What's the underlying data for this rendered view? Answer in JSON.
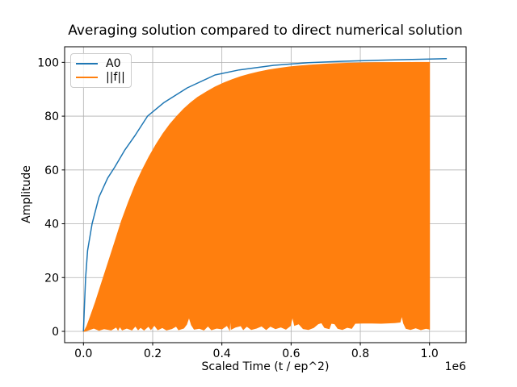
{
  "figure": {
    "title": "Averaging solution compared to direct numerical solution",
    "xlabel": "Scaled Time (t / ep^2)",
    "ylabel": "Amplitude",
    "offset_text": "1e6",
    "background": "#ffffff"
  },
  "legend": {
    "position": "upper-left",
    "entries": [
      {
        "label": "A0",
        "color": "#1f77b4"
      },
      {
        "label": "||f||",
        "color": "#ff7f0e"
      }
    ]
  },
  "chart_data": {
    "type": "line",
    "title": "Averaging solution compared to direct numerical solution",
    "xlabel": "Scaled Time (t / ep^2)",
    "ylabel": "Amplitude",
    "x_offset_label": "1e6",
    "grid": true,
    "colors": {
      "grid": "#b0b0b0",
      "spine": "#000000",
      "text": "#000000"
    },
    "xlim": [
      -54400,
      1105700
    ],
    "ylim": [
      -4.2,
      105.8
    ],
    "x_ticks": [
      0,
      200000,
      400000,
      600000,
      800000,
      1000000
    ],
    "x_tick_labels": [
      "0.0",
      "0.2",
      "0.4",
      "0.6",
      "0.8",
      "1.0"
    ],
    "y_ticks": [
      0,
      20,
      40,
      60,
      80,
      100
    ],
    "y_tick_labels": [
      "0",
      "20",
      "40",
      "60",
      "80",
      "100"
    ],
    "series": [
      {
        "name": "A0",
        "type": "line",
        "color": "#1f77b4",
        "linewidth": 1.5,
        "points": [
          [
            0,
            0
          ],
          [
            3000,
            10
          ],
          [
            6300,
            20
          ],
          [
            12000,
            30
          ],
          [
            25000,
            40
          ],
          [
            45000,
            50
          ],
          [
            70000,
            57
          ],
          [
            90000,
            61
          ],
          [
            120000,
            67.5
          ],
          [
            150000,
            73
          ],
          [
            185000,
            80
          ],
          [
            232000,
            85
          ],
          [
            300000,
            90.5
          ],
          [
            380000,
            95.3
          ],
          [
            450000,
            97.2
          ],
          [
            550000,
            98.9
          ],
          [
            650000,
            99.9
          ],
          [
            750000,
            100.4
          ],
          [
            850000,
            100.8
          ],
          [
            950000,
            101.1
          ],
          [
            1050000,
            101.35
          ]
        ]
      },
      {
        "name": "||f||",
        "type": "dense_oscillation_fill",
        "color": "#ff7f0e",
        "note": "rapidly oscillating ||f(t)|| rendered as a filled band between envelopes",
        "upper_envelope": [
          [
            0,
            0
          ],
          [
            4000,
            0.5
          ],
          [
            10000,
            2
          ],
          [
            20000,
            5.5
          ],
          [
            35000,
            11
          ],
          [
            50000,
            17
          ],
          [
            70000,
            25
          ],
          [
            90000,
            33
          ],
          [
            110000,
            41
          ],
          [
            130000,
            48
          ],
          [
            150000,
            54.5
          ],
          [
            170000,
            60
          ],
          [
            190000,
            65
          ],
          [
            210000,
            69.5
          ],
          [
            230000,
            73.5
          ],
          [
            250000,
            77
          ],
          [
            270000,
            80
          ],
          [
            290000,
            82.7
          ],
          [
            310000,
            85
          ],
          [
            330000,
            87
          ],
          [
            355000,
            89
          ],
          [
            380000,
            90.8
          ],
          [
            405000,
            92.3
          ],
          [
            430000,
            93.6
          ],
          [
            455000,
            94.7
          ],
          [
            480000,
            95.6
          ],
          [
            505000,
            96.4
          ],
          [
            535000,
            97.2
          ],
          [
            565000,
            97.8
          ],
          [
            595000,
            98.3
          ],
          [
            625000,
            98.7
          ],
          [
            655000,
            99.0
          ],
          [
            690000,
            99.3
          ],
          [
            725000,
            99.5
          ],
          [
            760000,
            99.65
          ],
          [
            800000,
            99.78
          ],
          [
            840000,
            99.86
          ],
          [
            880000,
            99.92
          ],
          [
            920000,
            99.96
          ],
          [
            960000,
            99.99
          ],
          [
            1000000,
            100
          ]
        ],
        "lower_envelope": [
          [
            4000,
            0
          ],
          [
            15000,
            0.5
          ],
          [
            30000,
            1.2
          ],
          [
            45000,
            0.4
          ],
          [
            60000,
            1.0
          ],
          [
            80000,
            0.5
          ],
          [
            95000,
            1.6
          ],
          [
            100000,
            0.5
          ],
          [
            105000,
            1.8
          ],
          [
            112000,
            0.5
          ],
          [
            125000,
            1.2
          ],
          [
            140000,
            0.5
          ],
          [
            150000,
            2.0
          ],
          [
            158000,
            0.6
          ],
          [
            165000,
            1.5
          ],
          [
            175000,
            0.5
          ],
          [
            188000,
            1.9
          ],
          [
            195000,
            0.7
          ],
          [
            205000,
            2.3
          ],
          [
            215000,
            0.6
          ],
          [
            228000,
            1.4
          ],
          [
            240000,
            0.5
          ],
          [
            255000,
            1.0
          ],
          [
            268000,
            1.9
          ],
          [
            275000,
            0.6
          ],
          [
            290000,
            1.2
          ],
          [
            298000,
            2.6
          ],
          [
            305000,
            5.3
          ],
          [
            312000,
            2.4
          ],
          [
            320000,
            0.8
          ],
          [
            335000,
            1.1
          ],
          [
            348000,
            0.5
          ],
          [
            360000,
            2.0
          ],
          [
            370000,
            0.6
          ],
          [
            385000,
            1.2
          ],
          [
            400000,
            0.9
          ],
          [
            415000,
            2.2
          ],
          [
            422000,
            0.6
          ],
          [
            424000,
            5.5
          ],
          [
            427000,
            0.8
          ],
          [
            440000,
            1.6
          ],
          [
            455000,
            2.1
          ],
          [
            462000,
            0.7
          ],
          [
            472000,
            1.9
          ],
          [
            485000,
            0.7
          ],
          [
            500000,
            1.2
          ],
          [
            515000,
            2.0
          ],
          [
            528000,
            0.7
          ],
          [
            540000,
            1.9
          ],
          [
            555000,
            1.0
          ],
          [
            570000,
            1.6
          ],
          [
            585000,
            0.8
          ],
          [
            598000,
            2.1
          ],
          [
            604000,
            5.5
          ],
          [
            610000,
            2.2
          ],
          [
            622000,
            2.8
          ],
          [
            635000,
            1.0
          ],
          [
            650000,
            0.7
          ],
          [
            665000,
            1.4
          ],
          [
            678000,
            2.8
          ],
          [
            688000,
            3.2
          ],
          [
            697000,
            1.4
          ],
          [
            710000,
            1.0
          ],
          [
            716000,
            3.0
          ],
          [
            726000,
            2.8
          ],
          [
            735000,
            1.1
          ],
          [
            748000,
            0.7
          ],
          [
            762000,
            1.5
          ],
          [
            775000,
            1.1
          ],
          [
            785000,
            3.0
          ],
          [
            820000,
            3.1
          ],
          [
            860000,
            3.0
          ],
          [
            900000,
            3.2
          ],
          [
            915000,
            3.4
          ],
          [
            920000,
            6.0
          ],
          [
            925000,
            3.0
          ],
          [
            932000,
            1.1
          ],
          [
            945000,
            0.7
          ],
          [
            960000,
            1.3
          ],
          [
            975000,
            0.6
          ],
          [
            990000,
            1.1
          ],
          [
            1000000,
            0.8
          ]
        ]
      }
    ]
  }
}
